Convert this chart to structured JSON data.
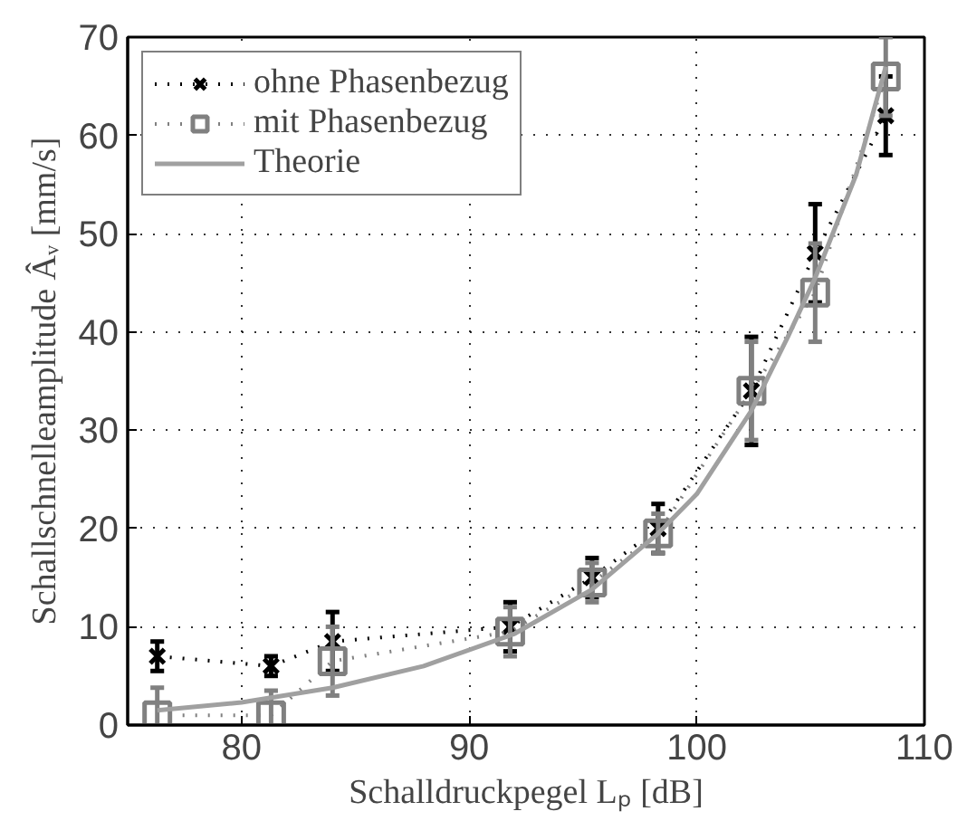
{
  "chart_data": {
    "type": "line",
    "xlabel": "Schalldruckpegel Lₚ [dB]",
    "ylabel": "Schallschnelleamplitude Âᵥ [mm/s]",
    "xlim": [
      75,
      110
    ],
    "ylim": [
      0,
      70
    ],
    "xticks": [
      80,
      90,
      100,
      110
    ],
    "yticks": [
      0,
      10,
      20,
      30,
      40,
      50,
      60,
      70
    ],
    "grid": true,
    "legend": "top left",
    "series": [
      {
        "name": "ohne Phasenbezug",
        "color": "#000000",
        "marker": "cross",
        "line_style": "dotted",
        "x": [
          76.3,
          81.3,
          84,
          91.8,
          95.4,
          98.3,
          102.4,
          105.2,
          108.3
        ],
        "values": [
          7,
          6,
          8.5,
          10,
          15,
          20,
          34,
          48,
          62
        ],
        "errors": [
          1.5,
          1,
          3,
          2.5,
          2,
          2.5,
          5.5,
          5,
          4
        ]
      },
      {
        "name": "mit Phasenbezug",
        "color": "#808080",
        "marker": "square",
        "line_style": "dotted",
        "x": [
          76.3,
          81.3,
          84,
          91.8,
          95.4,
          98.3,
          102.4,
          105.2,
          108.3
        ],
        "values": [
          1,
          1,
          6.5,
          9.5,
          14.5,
          19.5,
          34,
          44,
          66
        ],
        "errors": [
          2.8,
          2.5,
          3.5,
          2.5,
          2,
          2,
          5,
          5,
          4
        ]
      },
      {
        "name": "Theorie",
        "color": "#a0a0a0",
        "marker": "none",
        "line_style": "solid",
        "x": [
          76.3,
          80,
          84,
          88,
          92,
          95.4,
          98.3,
          100,
          102.4,
          104,
          105.2,
          107,
          108.3
        ],
        "values": [
          1.5,
          2.3,
          3.8,
          6,
          9.3,
          13.8,
          19.5,
          23.5,
          32,
          39.5,
          45.5,
          56,
          67
        ]
      }
    ]
  }
}
